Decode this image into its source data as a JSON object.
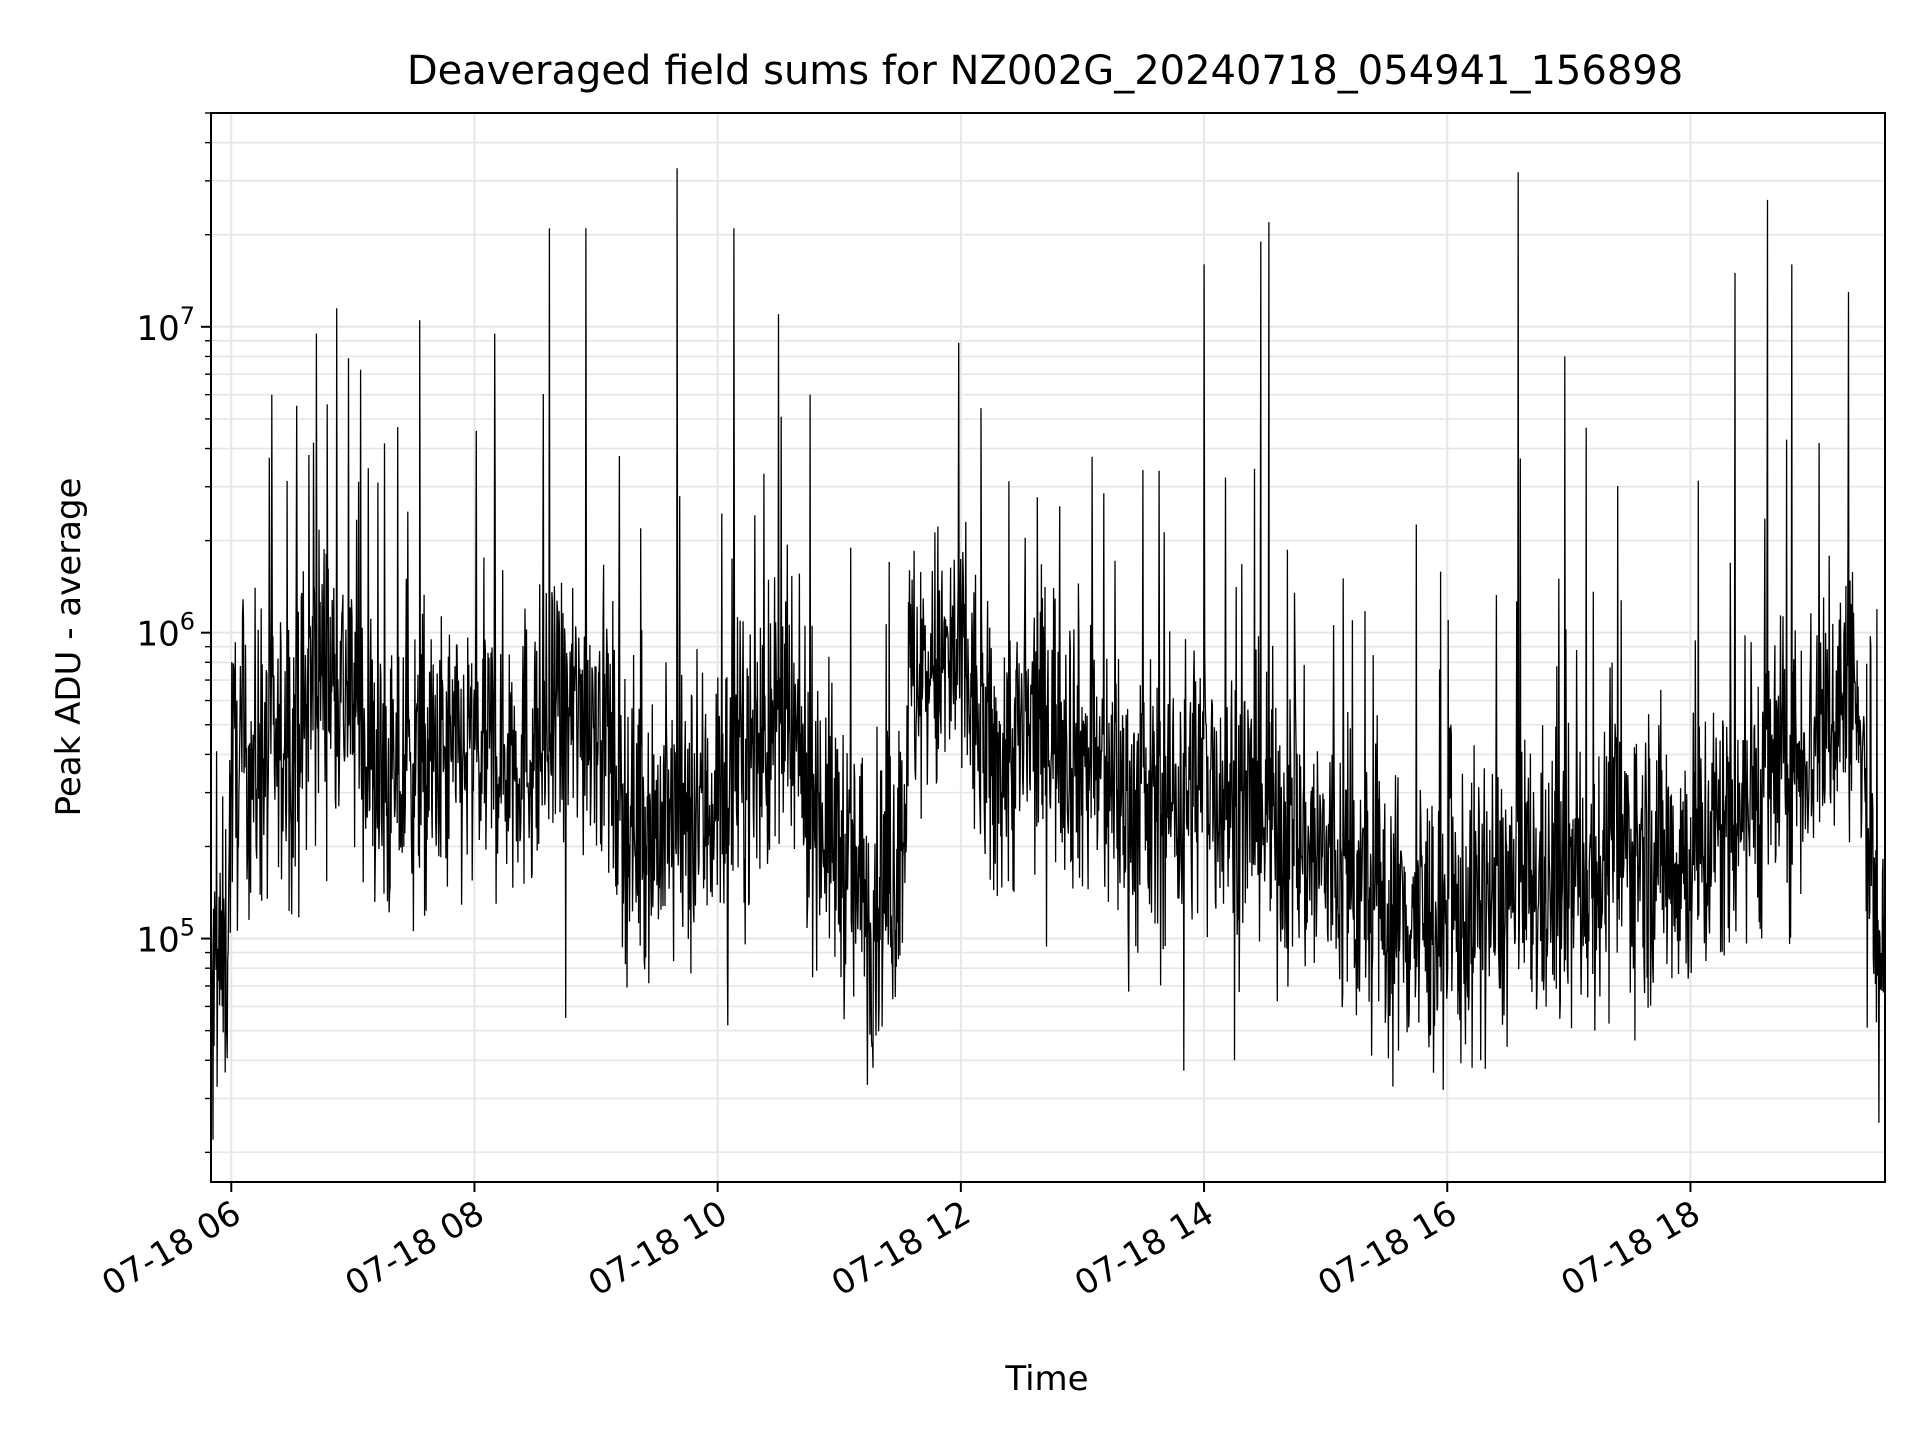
{
  "chart_data": {
    "type": "line",
    "title": "Deaveraged field sums for NZ002G_20240718_054941_156898",
    "xlabel": "Time",
    "ylabel": "Peak ADU - average",
    "x_axis": {
      "type": "datetime",
      "range": [
        "2024-07-18 05:50",
        "2024-07-18 19:36"
      ],
      "ticks": [
        {
          "value": "2024-07-18 06:00",
          "label": "07-18 06"
        },
        {
          "value": "2024-07-18 08:00",
          "label": "07-18 08"
        },
        {
          "value": "2024-07-18 10:00",
          "label": "07-18 10"
        },
        {
          "value": "2024-07-18 12:00",
          "label": "07-18 12"
        },
        {
          "value": "2024-07-18 14:00",
          "label": "07-18 14"
        },
        {
          "value": "2024-07-18 16:00",
          "label": "07-18 16"
        },
        {
          "value": "2024-07-18 18:00",
          "label": "07-18 18"
        }
      ]
    },
    "y_axis": {
      "scale": "log",
      "range": [
        16000,
        50000000
      ],
      "ticks": [
        {
          "value": 100000,
          "base": "10",
          "exp": "5"
        },
        {
          "value": 1000000,
          "base": "10",
          "exp": "6"
        },
        {
          "value": 10000000,
          "base": "10",
          "exp": "7"
        }
      ]
    },
    "grid": true,
    "series": [
      {
        "color": "#000000",
        "trend": [
          {
            "x": "2024-07-18 05:50",
            "y": 70000
          },
          {
            "x": "2024-07-18 05:58",
            "y": 90000
          },
          {
            "x": "2024-07-18 06:00",
            "y": 350000
          },
          {
            "x": "2024-07-18 06:30",
            "y": 420000
          },
          {
            "x": "2024-07-18 06:45",
            "y": 800000
          },
          {
            "x": "2024-07-18 07:00",
            "y": 600000
          },
          {
            "x": "2024-07-18 07:15",
            "y": 300000
          },
          {
            "x": "2024-07-18 07:30",
            "y": 350000
          },
          {
            "x": "2024-07-18 08:00",
            "y": 400000
          },
          {
            "x": "2024-07-18 08:30",
            "y": 420000
          },
          {
            "x": "2024-07-18 09:00",
            "y": 600000
          },
          {
            "x": "2024-07-18 09:15",
            "y": 250000
          },
          {
            "x": "2024-07-18 09:45",
            "y": 220000
          },
          {
            "x": "2024-07-18 10:00",
            "y": 300000
          },
          {
            "x": "2024-07-18 10:30",
            "y": 500000
          },
          {
            "x": "2024-07-18 10:50",
            "y": 280000
          },
          {
            "x": "2024-07-18 11:15",
            "y": 120000
          },
          {
            "x": "2024-07-18 11:30",
            "y": 180000
          },
          {
            "x": "2024-07-18 11:35",
            "y": 700000
          },
          {
            "x": "2024-07-18 12:00",
            "y": 800000
          },
          {
            "x": "2024-07-18 12:15",
            "y": 350000
          },
          {
            "x": "2024-07-18 12:45",
            "y": 550000
          },
          {
            "x": "2024-07-18 13:00",
            "y": 400000
          },
          {
            "x": "2024-07-18 13:30",
            "y": 250000
          },
          {
            "x": "2024-07-18 14:00",
            "y": 350000
          },
          {
            "x": "2024-07-18 14:30",
            "y": 250000
          },
          {
            "x": "2024-07-18 15:00",
            "y": 180000
          },
          {
            "x": "2024-07-18 15:30",
            "y": 120000
          },
          {
            "x": "2024-07-18 16:00",
            "y": 110000
          },
          {
            "x": "2024-07-18 16:30",
            "y": 140000
          },
          {
            "x": "2024-07-18 17:00",
            "y": 150000
          },
          {
            "x": "2024-07-18 17:30",
            "y": 200000
          },
          {
            "x": "2024-07-18 18:00",
            "y": 180000
          },
          {
            "x": "2024-07-18 18:30",
            "y": 300000
          },
          {
            "x": "2024-07-18 19:00",
            "y": 450000
          },
          {
            "x": "2024-07-18 19:20",
            "y": 700000
          },
          {
            "x": "2024-07-18 19:30",
            "y": 150000
          },
          {
            "x": "2024-07-18 19:36",
            "y": 80000
          }
        ],
        "spikes": [
          {
            "x": "2024-07-18 06:20",
            "y": 6000000
          },
          {
            "x": "2024-07-18 06:42",
            "y": 9500000
          },
          {
            "x": "2024-07-18 06:52",
            "y": 11500000
          },
          {
            "x": "2024-07-18 07:33",
            "y": 10500000
          },
          {
            "x": "2024-07-18 08:10",
            "y": 9500000
          },
          {
            "x": "2024-07-18 08:37",
            "y": 21000000
          },
          {
            "x": "2024-07-18 08:55",
            "y": 21000000
          },
          {
            "x": "2024-07-18 09:40",
            "y": 33000000
          },
          {
            "x": "2024-07-18 10:08",
            "y": 21000000
          },
          {
            "x": "2024-07-18 10:30",
            "y": 11000000
          },
          {
            "x": "2024-07-18 14:00",
            "y": 16000000
          },
          {
            "x": "2024-07-18 14:28",
            "y": 19000000
          },
          {
            "x": "2024-07-18 14:32",
            "y": 22000000
          },
          {
            "x": "2024-07-18 16:35",
            "y": 32000000
          },
          {
            "x": "2024-07-18 16:58",
            "y": 8000000
          },
          {
            "x": "2024-07-18 18:22",
            "y": 15000000
          },
          {
            "x": "2024-07-18 18:38",
            "y": 26000000
          },
          {
            "x": "2024-07-18 18:50",
            "y": 16000000
          },
          {
            "x": "2024-07-18 19:18",
            "y": 13000000
          }
        ],
        "dips": [
          {
            "x": "2024-07-18 05:51",
            "y": 22000
          },
          {
            "x": "2024-07-18 08:45",
            "y": 55000
          },
          {
            "x": "2024-07-18 10:05",
            "y": 52000
          },
          {
            "x": "2024-07-18 13:50",
            "y": 37000
          },
          {
            "x": "2024-07-18 14:15",
            "y": 40000
          },
          {
            "x": "2024-07-18 15:58",
            "y": 32000
          },
          {
            "x": "2024-07-18 19:33",
            "y": 25000
          }
        ]
      }
    ]
  }
}
